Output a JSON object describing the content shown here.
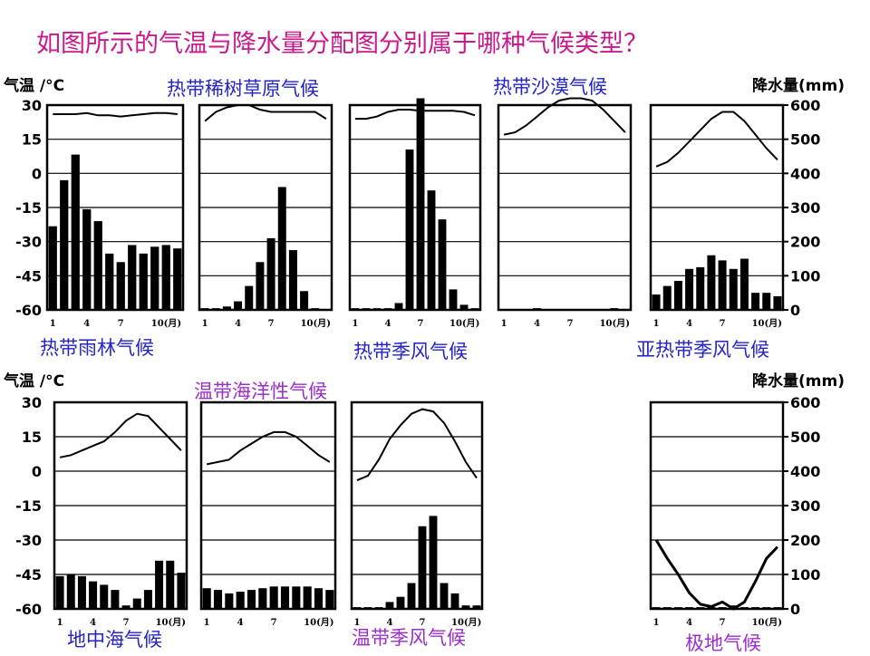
{
  "title": "如图所示的气温与降水量分配图分别属于哪种气候类型？",
  "temp_axis_label": "气温 /°C",
  "precip_axis_label": "降水量(mm)",
  "temp_ticks": [
    "30",
    "15",
    "0",
    "-15",
    "-30",
    "-45",
    "-60"
  ],
  "precip_ticks": [
    "600",
    "500",
    "400",
    "300",
    "200",
    "100",
    "0"
  ],
  "month_ticks": [
    "1",
    "4",
    "7",
    "10(月)"
  ],
  "colors": {
    "title": "#c81a8c",
    "label_blue": "#2323c8",
    "label_purple": "#9b2ec8",
    "ink": "#000000"
  },
  "chart_data": [
    {
      "type": "bar+line",
      "label": "热带雨林气候",
      "label_color": "#2323c8",
      "temperature": [
        26,
        26,
        26,
        26.5,
        25.5,
        25.5,
        25,
        25.5,
        26,
        26.5,
        26.5,
        26
      ],
      "precipitation": [
        245,
        380,
        455,
        295,
        260,
        165,
        140,
        190,
        165,
        185,
        190,
        180
      ],
      "ylim_temp": [
        -60,
        30
      ],
      "ylim_precip": [
        0,
        600
      ]
    },
    {
      "type": "bar+line",
      "label": "热带稀树草原气候",
      "label_color": "#2323c8",
      "temperature": [
        23,
        27,
        29,
        30,
        30,
        28,
        27,
        27,
        27,
        27,
        27,
        24
      ],
      "precipitation": [
        5,
        5,
        10,
        25,
        70,
        140,
        210,
        360,
        175,
        55,
        5,
        0
      ],
      "ylim_temp": [
        -60,
        30
      ],
      "ylim_precip": [
        0,
        600
      ]
    },
    {
      "type": "bar+line",
      "label": "热带季风气候",
      "label_color": "#2323c8",
      "temperature": [
        24,
        24,
        25,
        27,
        28,
        28,
        27.5,
        27.5,
        27.5,
        27.5,
        27,
        25.5
      ],
      "precipitation": [
        5,
        5,
        5,
        5,
        20,
        470,
        620,
        350,
        265,
        60,
        15,
        5
      ],
      "ylim_temp": [
        -60,
        30
      ],
      "ylim_precip": [
        0,
        600
      ]
    },
    {
      "type": "bar+line",
      "label": "热带沙漠气候",
      "label_color": "#2323c8",
      "temperature": [
        17,
        18,
        21,
        25,
        29,
        32,
        33,
        33,
        32,
        28,
        23,
        18
      ],
      "precipitation": [
        0,
        0,
        0,
        5,
        0,
        0,
        0,
        0,
        0,
        0,
        5,
        0
      ],
      "ylim_temp": [
        -60,
        30
      ],
      "ylim_precip": [
        0,
        600
      ]
    },
    {
      "type": "bar+line",
      "label": "亚热带季风气候",
      "label_color": "#2323c8",
      "temperature": [
        3,
        5,
        9,
        14,
        19,
        24,
        27,
        27,
        23,
        17,
        11,
        6
      ],
      "precipitation": [
        45,
        70,
        85,
        120,
        125,
        160,
        145,
        120,
        150,
        50,
        50,
        40
      ],
      "ylim_temp": [
        -60,
        30
      ],
      "ylim_precip": [
        0,
        600
      ]
    },
    {
      "type": "bar+line",
      "label": "地中海气候",
      "label_color": "#2323c8",
      "temperature": [
        6,
        7,
        9,
        11,
        13,
        17,
        22,
        25,
        24,
        19,
        14,
        9
      ],
      "precipitation": [
        95,
        100,
        95,
        80,
        70,
        55,
        10,
        30,
        55,
        140,
        140,
        105
      ],
      "ylim_temp": [
        -60,
        30
      ],
      "ylim_precip": [
        0,
        600
      ]
    },
    {
      "type": "bar+line",
      "label": "温带海洋性气候",
      "label_color": "#9b2ec8",
      "temperature": [
        3,
        4,
        5,
        9,
        12,
        15,
        17,
        17,
        15,
        11,
        7,
        4
      ],
      "precipitation": [
        60,
        55,
        45,
        50,
        55,
        60,
        65,
        65,
        65,
        65,
        60,
        55
      ],
      "ylim_temp": [
        -60,
        30
      ],
      "ylim_precip": [
        0,
        600
      ]
    },
    {
      "type": "bar+line",
      "label": "温带季风气候",
      "label_color": "#9b2ec8",
      "temperature": [
        -4,
        -2,
        5,
        14,
        20,
        25,
        27,
        26,
        21,
        13,
        4,
        -3
      ],
      "precipitation": [
        5,
        5,
        5,
        20,
        35,
        75,
        240,
        270,
        75,
        45,
        10,
        10
      ],
      "ylim_temp": [
        -60,
        30
      ],
      "ylim_precip": [
        0,
        600
      ]
    },
    {
      "type": "bar+line",
      "label": "极地气候",
      "label_color": "#9b2ec8",
      "temperature": [
        -30,
        -38,
        -45,
        -53,
        -58,
        -59,
        -57,
        -60,
        -57,
        -48,
        -38,
        -33
      ],
      "precipitation": [
        5,
        5,
        5,
        5,
        5,
        5,
        5,
        10,
        5,
        5,
        5,
        5
      ],
      "ylim_temp": [
        -60,
        30
      ],
      "ylim_precip": [
        0,
        600
      ]
    }
  ]
}
